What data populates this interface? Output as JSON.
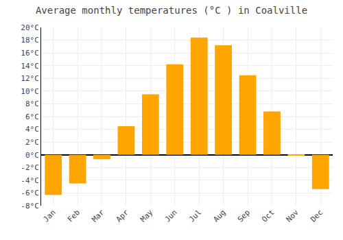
{
  "chart_data": {
    "type": "bar",
    "title": "Average monthly temperatures (°C ) in Coalville",
    "categories": [
      "Jan",
      "Feb",
      "Mar",
      "Apr",
      "May",
      "Jun",
      "Jul",
      "Aug",
      "Sep",
      "Oct",
      "Nov",
      "Dec"
    ],
    "values": [
      -6.3,
      -4.5,
      -0.7,
      4.5,
      9.5,
      14.2,
      18.4,
      17.2,
      12.5,
      6.8,
      -0.1,
      -5.4
    ],
    "color": "#FFA500",
    "ylim": [
      -8,
      20
    ],
    "yticks": [
      {
        "value": -8,
        "label": "-8°C"
      },
      {
        "value": -6,
        "label": "-6°C"
      },
      {
        "value": -4,
        "label": "-4°C"
      },
      {
        "value": -2,
        "label": "-2°C"
      },
      {
        "value": 0,
        "label": "0°C"
      },
      {
        "value": 2,
        "label": "2°C"
      },
      {
        "value": 4,
        "label": "4°C"
      },
      {
        "value": 6,
        "label": "6°C"
      },
      {
        "value": 8,
        "label": "8°C"
      },
      {
        "value": 10,
        "label": "10°C"
      },
      {
        "value": 12,
        "label": "12°C"
      },
      {
        "value": 14,
        "label": "14°C"
      },
      {
        "value": 16,
        "label": "16°C"
      },
      {
        "value": 18,
        "label": "18°C"
      },
      {
        "value": 20,
        "label": "20°C"
      }
    ],
    "grid": true
  }
}
